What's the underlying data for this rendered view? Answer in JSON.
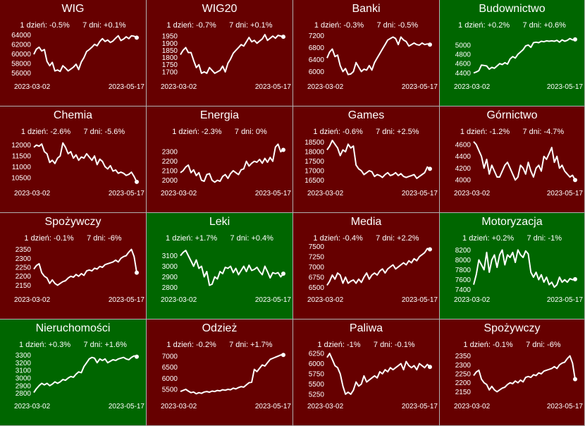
{
  "colors": {
    "negative": "#660000",
    "positive": "#006600",
    "border": "#b0b0b0",
    "line": "#ffffff"
  },
  "chart_data": [
    {
      "type": "line",
      "title": "WIG",
      "change_1d": "1 dzień: -0.5%",
      "change_7d": "7 dni: +0.1%",
      "sentiment": "negative",
      "x_start": "2023-03-02",
      "x_end": "2023-05-17",
      "ylim": [
        55000,
        64800
      ],
      "yticks": [
        "64000",
        "62000",
        "60000",
        "58000",
        "56000"
      ],
      "ytick_values": [
        64000,
        62000,
        60000,
        58000,
        56000
      ],
      "values": [
        59900,
        61000,
        61400,
        60600,
        60900,
        58400,
        57500,
        58200,
        56400,
        56600,
        56300,
        57500,
        57000,
        56400,
        56800,
        57200,
        57800,
        56700,
        58300,
        59200,
        60500,
        60900,
        61400,
        62000,
        61700,
        62600,
        63200,
        62600,
        62900,
        62400,
        62700,
        63300,
        63800,
        62800,
        63100,
        63600,
        63200,
        63800,
        63700,
        63400
      ]
    },
    {
      "type": "line",
      "title": "WIG20",
      "change_1d": "1 dzień: -0.7%",
      "change_7d": "7 dni: +0.1%",
      "sentiment": "negative",
      "x_start": "2023-03-02",
      "x_end": "2023-05-17",
      "ylim": [
        1660,
        1985
      ],
      "yticks": [
        "1950",
        "1900",
        "1850",
        "1800",
        "1750",
        "1700"
      ],
      "ytick_values": [
        1950,
        1900,
        1850,
        1800,
        1750,
        1700
      ],
      "values": [
        1820,
        1850,
        1870,
        1835,
        1835,
        1780,
        1730,
        1750,
        1690,
        1700,
        1690,
        1730,
        1710,
        1690,
        1700,
        1710,
        1740,
        1700,
        1760,
        1790,
        1830,
        1850,
        1870,
        1890,
        1880,
        1910,
        1940,
        1910,
        1920,
        1900,
        1915,
        1930,
        1960,
        1920,
        1935,
        1950,
        1935,
        1955,
        1950,
        1945
      ]
    },
    {
      "type": "line",
      "title": "Banki",
      "change_1d": "1 dzień: -0.3%",
      "change_7d": "7 dni: -0.5%",
      "sentiment": "negative",
      "x_start": "2023-03-02",
      "x_end": "2023-05-17",
      "ylim": [
        5800,
        7350
      ],
      "yticks": [
        "7200",
        "6800",
        "6400",
        "6000"
      ],
      "ytick_values": [
        7200,
        6800,
        6400,
        6000
      ],
      "values": [
        6450,
        6650,
        6750,
        6500,
        6550,
        6200,
        6000,
        6100,
        5900,
        5920,
        6000,
        6300,
        6150,
        6000,
        6080,
        6050,
        6200,
        6050,
        6300,
        6450,
        6600,
        6750,
        6900,
        7050,
        7100,
        7150,
        7100,
        6900,
        7150,
        7050,
        7000,
        6850,
        6900,
        6950,
        6900,
        6880,
        6950,
        6900,
        6920,
        6900
      ]
    },
    {
      "type": "line",
      "title": "Budownictwo",
      "change_1d": "1 dzień: +0.2%",
      "change_7d": "7 dni: +0.6%",
      "sentiment": "positive",
      "x_start": "2023-03-02",
      "x_end": "2023-05-17",
      "ylim": [
        4300,
        5300
      ],
      "yticks": [
        "5000",
        "4800",
        "4600",
        "4400"
      ],
      "ytick_values": [
        5000,
        4800,
        4600,
        4400
      ],
      "values": [
        4400,
        4420,
        4450,
        4570,
        4560,
        4550,
        4480,
        4520,
        4500,
        4550,
        4600,
        4580,
        4620,
        4590,
        4700,
        4750,
        4720,
        4800,
        4850,
        4900,
        4980,
        5000,
        4950,
        5050,
        5060,
        5050,
        5080,
        5070,
        5090,
        5080,
        5090,
        5080,
        5100,
        5060,
        5110,
        5080,
        5100,
        5140,
        5110,
        5120
      ]
    },
    {
      "type": "line",
      "title": "Chemia",
      "change_1d": "1 dzień: -2.6%",
      "change_7d": "7 dni: -5.6%",
      "sentiment": "negative",
      "x_start": "2023-03-02",
      "x_end": "2023-05-17",
      "ylim": [
        10200,
        12350
      ],
      "yticks": [
        "12000",
        "11500",
        "11000",
        "10500"
      ],
      "ytick_values": [
        12000,
        11500,
        11000,
        10500
      ],
      "values": [
        11900,
        12000,
        11950,
        12050,
        11700,
        11600,
        11200,
        11300,
        11150,
        11400,
        11500,
        12100,
        11900,
        11600,
        11700,
        11400,
        11550,
        11300,
        11450,
        11400,
        11600,
        11450,
        11300,
        11500,
        11100,
        11350,
        11250,
        11000,
        10900,
        11050,
        10800,
        10850,
        10700,
        10750,
        10700,
        10600,
        10650,
        10750,
        10550,
        10300
      ]
    },
    {
      "type": "line",
      "title": "Energia",
      "change_1d": "1 dzień: -2.3%",
      "change_7d": "7 dni: 0%",
      "sentiment": "negative",
      "x_start": "2023-03-02",
      "x_end": "2023-05-17",
      "ylim": [
        1960,
        2450
      ],
      "yticks": [
        "2300",
        "2200",
        "2100",
        "2000"
      ],
      "ytick_values": [
        2300,
        2200,
        2100,
        2000
      ],
      "values": [
        2080,
        2100,
        2140,
        2160,
        2080,
        2110,
        2050,
        2080,
        2000,
        1990,
        2060,
        2070,
        2000,
        1980,
        2000,
        1990,
        2040,
        2060,
        2020,
        2070,
        2100,
        2080,
        2060,
        2110,
        2120,
        2200,
        2150,
        2180,
        2200,
        2190,
        2220,
        2180,
        2230,
        2190,
        2240,
        2200,
        2350,
        2380,
        2300,
        2320
      ]
    },
    {
      "type": "line",
      "title": "Games",
      "change_1d": "1 dzień: -0.6%",
      "change_7d": "7 dni: +2.5%",
      "sentiment": "negative",
      "x_start": "2023-03-02",
      "x_end": "2023-05-17",
      "ylim": [
        16300,
        18750
      ],
      "yticks": [
        "18500",
        "18000",
        "17500",
        "17000",
        "16500"
      ],
      "ytick_values": [
        18500,
        18000,
        17500,
        17000,
        16500
      ],
      "values": [
        18100,
        18300,
        18600,
        18400,
        18200,
        17800,
        18100,
        18000,
        18400,
        18200,
        18300,
        17300,
        17100,
        17000,
        16800,
        16900,
        17000,
        16950,
        16700,
        16800,
        16750,
        16650,
        16800,
        16900,
        16750,
        16800,
        16900,
        16750,
        16850,
        16700,
        16650,
        16700,
        16750,
        16800,
        16600,
        16700,
        16800,
        16900,
        17200,
        17100
      ]
    },
    {
      "type": "line",
      "title": "Górnictwo",
      "change_1d": "1 dzień: -1.2%",
      "change_7d": "7 dni: -4.7%",
      "sentiment": "negative",
      "x_start": "2023-03-02",
      "x_end": "2023-05-17",
      "ylim": [
        3930,
        4720
      ],
      "yticks": [
        "4600",
        "4400",
        "4200",
        "4000"
      ],
      "ytick_values": [
        4600,
        4400,
        4200,
        4000
      ],
      "values": [
        4650,
        4600,
        4500,
        4400,
        4200,
        4350,
        4100,
        4250,
        4150,
        4050,
        4050,
        4150,
        4250,
        4300,
        4200,
        4100,
        4000,
        4050,
        4250,
        4200,
        4100,
        4300,
        4150,
        4050,
        4200,
        4250,
        4150,
        4400,
        4350,
        4450,
        4550,
        4300,
        4400,
        4200,
        4250,
        4150,
        4100,
        4050,
        4080,
        4000
      ]
    },
    {
      "type": "line",
      "title": "Spożywczy",
      "change_1d": "1 dzień: -0.1%",
      "change_7d": "7 dni: -6%",
      "sentiment": "negative",
      "x_start": "2023-03-02",
      "x_end": "2023-05-17",
      "ylim": [
        2120,
        2380
      ],
      "yticks": [
        "2350",
        "2300",
        "2250",
        "2200",
        "2150"
      ],
      "ytick_values": [
        2350,
        2300,
        2250,
        2200,
        2150
      ],
      "values": [
        2240,
        2260,
        2270,
        2220,
        2200,
        2190,
        2160,
        2180,
        2160,
        2150,
        2160,
        2170,
        2175,
        2190,
        2200,
        2195,
        2210,
        2200,
        2215,
        2205,
        2230,
        2235,
        2230,
        2245,
        2240,
        2255,
        2250,
        2265,
        2270,
        2275,
        2280,
        2290,
        2280,
        2300,
        2310,
        2315,
        2335,
        2350,
        2310,
        2220
      ]
    },
    {
      "type": "line",
      "title": "Leki",
      "change_1d": "1 dzień: +1.7%",
      "change_7d": "7 dni: +0.4%",
      "sentiment": "positive",
      "x_start": "2023-03-02",
      "x_end": "2023-05-17",
      "ylim": [
        2770,
        3210
      ],
      "yticks": [
        "3100",
        "3000",
        "2900",
        "2800"
      ],
      "ytick_values": [
        3100,
        3000,
        2900,
        2800
      ],
      "values": [
        3100,
        3130,
        3150,
        3100,
        3050,
        3000,
        3060,
        2980,
        3000,
        2900,
        2950,
        2820,
        2830,
        2900,
        2880,
        2950,
        2930,
        2990,
        2980,
        3000,
        2940,
        2980,
        2920,
        2960,
        3000,
        2950,
        3010,
        2960,
        2970,
        2990,
        2950,
        2920,
        3000,
        2950,
        2890,
        2940,
        2930,
        2940,
        2900,
        2930
      ]
    },
    {
      "type": "line",
      "title": "Media",
      "change_1d": "1 dzień: -0.4%",
      "change_7d": "7 dni: +2.2%",
      "sentiment": "negative",
      "x_start": "2023-03-02",
      "x_end": "2023-05-17",
      "ylim": [
        6420,
        7560
      ],
      "yticks": [
        "7500",
        "7250",
        "7000",
        "6750",
        "6500"
      ],
      "ytick_values": [
        7500,
        7250,
        7000,
        6750,
        6500
      ],
      "values": [
        6550,
        6650,
        6800,
        6700,
        6850,
        6800,
        6600,
        6750,
        6600,
        6650,
        6680,
        6600,
        6700,
        6620,
        6750,
        6850,
        6700,
        6800,
        6850,
        6800,
        6900,
        6950,
        6850,
        6950,
        7000,
        7050,
        6950,
        7000,
        7050,
        7100,
        7050,
        7150,
        7100,
        7200,
        7150,
        7250,
        7300,
        7350,
        7450,
        7430
      ]
    },
    {
      "type": "line",
      "title": "Motoryzacja",
      "change_1d": "1 dzień: +0.2%",
      "change_7d": "7 dni: -1%",
      "sentiment": "positive",
      "x_start": "2023-03-02",
      "x_end": "2023-05-17",
      "ylim": [
        7380,
        8320
      ],
      "yticks": [
        "8200",
        "8000",
        "7800",
        "7600",
        "7400"
      ],
      "ytick_values": [
        8200,
        8000,
        7800,
        7600,
        7400
      ],
      "values": [
        7500,
        7700,
        8000,
        7900,
        7800,
        8150,
        7750,
        8000,
        8100,
        7850,
        8100,
        8200,
        7900,
        8100,
        8050,
        8150,
        7950,
        8200,
        8100,
        8050,
        8180,
        8120,
        7750,
        7650,
        7750,
        7600,
        7700,
        7550,
        7650,
        7500,
        7550,
        7450,
        7500,
        7650,
        7550,
        7600,
        7550,
        7620,
        7600,
        7610
      ]
    },
    {
      "type": "line",
      "title": "Nieruchomości",
      "change_1d": "1 dzień: +0.3%",
      "change_7d": "7 dni: +1.6%",
      "sentiment": "positive",
      "x_start": "2023-03-02",
      "x_end": "2023-05-17",
      "ylim": [
        2750,
        3360
      ],
      "yticks": [
        "3300",
        "3200",
        "3100",
        "3000",
        "2900",
        "2800"
      ],
      "ytick_values": [
        3300,
        3200,
        3100,
        3000,
        2900,
        2800
      ],
      "values": [
        2810,
        2860,
        2900,
        2930,
        2910,
        2930,
        2900,
        2920,
        2950,
        2930,
        2950,
        2980,
        2970,
        3000,
        3020,
        3010,
        3050,
        3080,
        3070,
        3150,
        3200,
        3250,
        3270,
        3260,
        3200,
        3250,
        3230,
        3250,
        3200,
        3220,
        3240,
        3230,
        3250,
        3260,
        3270,
        3250,
        3240,
        3270,
        3290,
        3280
      ]
    },
    {
      "type": "line",
      "title": "Odzież",
      "change_1d": "1 dzień: -0.2%",
      "change_7d": "7 dni: +1.7%",
      "sentiment": "negative",
      "x_start": "2023-03-02",
      "x_end": "2023-05-17",
      "ylim": [
        5150,
        7250
      ],
      "yticks": [
        "7000",
        "6500",
        "6000",
        "5500"
      ],
      "ytick_values": [
        7000,
        6500,
        6000,
        5500
      ],
      "values": [
        5400,
        5450,
        5500,
        5420,
        5350,
        5380,
        5300,
        5350,
        5320,
        5380,
        5400,
        5370,
        5420,
        5400,
        5450,
        5430,
        5480,
        5460,
        5500,
        5480,
        5550,
        5520,
        5580,
        5620,
        5600,
        5700,
        5800,
        5820,
        6400,
        6300,
        6450,
        6600,
        6550,
        6700,
        6850,
        6900,
        6950,
        7000,
        7050,
        7050
      ]
    },
    {
      "type": "line",
      "title": "Paliwa",
      "change_1d": "1 dzień: -1%",
      "change_7d": "7 dni: -0.1%",
      "sentiment": "negative",
      "x_start": "2023-03-02",
      "x_end": "2023-05-17",
      "ylim": [
        5180,
        6320
      ],
      "yticks": [
        "6250",
        "6000",
        "5750",
        "5500",
        "5250"
      ],
      "ytick_values": [
        6250,
        6000,
        5750,
        5500,
        5250
      ],
      "values": [
        6150,
        6250,
        6100,
        5950,
        5900,
        5750,
        5450,
        5250,
        5300,
        5250,
        5350,
        5550,
        5450,
        5500,
        5700,
        5550,
        5600,
        5650,
        5700,
        5650,
        5800,
        5750,
        5850,
        5800,
        5900,
        5850,
        5900,
        5950,
        6000,
        5850,
        6050,
        5950,
        5900,
        5950,
        5850,
        6000,
        5950,
        5900,
        5980,
        5920
      ]
    },
    {
      "type": "line",
      "title": "Spożywczy",
      "change_1d": "1 dzień: -0.1%",
      "change_7d": "7 dni: -6%",
      "sentiment": "negative",
      "x_start": "2023-03-02",
      "x_end": "2023-05-17",
      "ylim": [
        2120,
        2380
      ],
      "yticks": [
        "2350",
        "2300",
        "2250",
        "2200",
        "2150"
      ],
      "ytick_values": [
        2350,
        2300,
        2250,
        2200,
        2150
      ],
      "values": [
        2240,
        2260,
        2270,
        2220,
        2200,
        2190,
        2160,
        2180,
        2160,
        2150,
        2160,
        2170,
        2175,
        2190,
        2200,
        2195,
        2210,
        2200,
        2215,
        2205,
        2230,
        2235,
        2230,
        2245,
        2240,
        2255,
        2250,
        2265,
        2270,
        2275,
        2280,
        2290,
        2280,
        2300,
        2310,
        2315,
        2335,
        2350,
        2310,
        2220
      ]
    }
  ]
}
